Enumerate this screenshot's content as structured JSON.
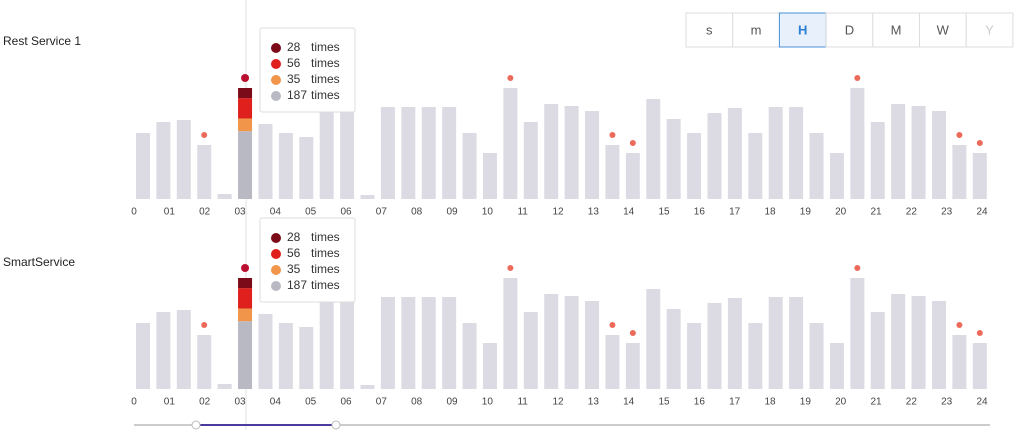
{
  "controls": {
    "buttons": [
      "s",
      "m",
      "H",
      "D",
      "M",
      "W",
      "Y"
    ],
    "selected": "H",
    "disabled": "Y"
  },
  "chart_data": [
    {
      "type": "bar",
      "title": "Rest Service 1",
      "values": [
        66,
        77,
        79,
        54,
        5,
        111,
        75,
        66,
        62,
        91,
        91,
        4,
        92,
        92,
        92,
        92,
        66,
        46,
        111,
        77,
        95,
        93,
        88,
        54,
        46,
        100,
        80,
        66,
        86,
        91,
        66,
        92,
        92,
        66,
        46,
        111,
        77,
        95,
        93,
        88,
        54,
        46
      ],
      "color": "#dcdbe3",
      "xlim": [
        0,
        24
      ],
      "xticks": [
        0,
        {
          "value": 1,
          "label": "01"
        },
        {
          "value": 2,
          "label": "02"
        },
        {
          "value": 3,
          "label": "03"
        },
        {
          "value": 4,
          "label": "04"
        },
        {
          "value": 5,
          "label": "05"
        },
        {
          "value": 6,
          "label": "06"
        },
        {
          "value": 7,
          "label": "07"
        },
        {
          "value": 8,
          "label": "08"
        },
        {
          "value": 9,
          "label": "09"
        },
        10,
        11,
        12,
        13,
        14,
        15,
        16,
        17,
        18,
        19,
        20,
        21,
        22,
        23,
        24
      ],
      "tooltip": {
        "unit": "times",
        "series": [
          {
            "color": "#7b0b18",
            "value": 28
          },
          {
            "color": "#e0201c",
            "value": 56
          },
          {
            "color": "#f0954a",
            "value": 35
          },
          {
            "color": "#b9b9c4",
            "value": 187
          }
        ]
      }
    },
    {
      "type": "bar",
      "title": "SmartService",
      "values": [
        66,
        77,
        79,
        54,
        5,
        111,
        75,
        66,
        62,
        91,
        91,
        4,
        92,
        92,
        92,
        92,
        66,
        46,
        111,
        77,
        95,
        93,
        88,
        54,
        46,
        100,
        80,
        66,
        86,
        91,
        66,
        92,
        92,
        66,
        46,
        111,
        77,
        95,
        93,
        88,
        54,
        46
      ],
      "color": "#dcdbe3",
      "xlim": [
        0,
        24
      ],
      "xticks": [
        0,
        {
          "value": 1,
          "label": "01"
        },
        {
          "value": 2,
          "label": "02"
        },
        {
          "value": 3,
          "label": "03"
        },
        {
          "value": 4,
          "label": "04"
        },
        {
          "value": 5,
          "label": "05"
        },
        {
          "value": 6,
          "label": "06"
        },
        {
          "value": 7,
          "label": "07"
        },
        {
          "value": 8,
          "label": "08"
        },
        {
          "value": 9,
          "label": "09"
        },
        10,
        11,
        12,
        13,
        14,
        15,
        16,
        17,
        18,
        19,
        20,
        21,
        22,
        23,
        24
      ],
      "tooltip": {
        "unit": "times",
        "series": [
          {
            "color": "#7b0b18",
            "value": 28
          },
          {
            "color": "#e0201c",
            "value": 56
          },
          {
            "color": "#f0954a",
            "value": 35
          },
          {
            "color": "#b9b9c4",
            "value": 187
          }
        ]
      }
    }
  ]
}
